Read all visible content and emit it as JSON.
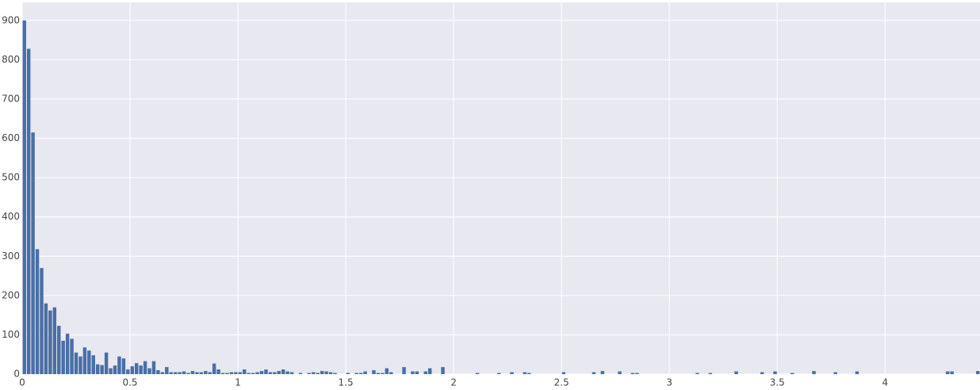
{
  "chart_data": {
    "type": "histogram",
    "color": "#4a6fa5",
    "grid": true,
    "bins": [
      0,
      0.02,
      0.04,
      0.06,
      0.08,
      0.1,
      0.12,
      0.14,
      0.16,
      0.18,
      0.2,
      0.22,
      0.24,
      0.26,
      0.28,
      0.3,
      0.32,
      0.34,
      0.36,
      0.38,
      0.4,
      0.42,
      0.44,
      0.46,
      0.48,
      0.5,
      0.52,
      0.54,
      0.56,
      0.58,
      0.6,
      0.62,
      0.64,
      0.66,
      0.68,
      0.7,
      0.72,
      0.74,
      0.76,
      0.78,
      0.8,
      0.82,
      0.84,
      0.86,
      0.88,
      0.9,
      0.92,
      0.94,
      0.96,
      0.98,
      1,
      1.02,
      1.04,
      1.06,
      1.08,
      1.1,
      1.12,
      1.14,
      1.16,
      1.18,
      1.2,
      1.22,
      1.24,
      1.26,
      1.28,
      1.3,
      1.32,
      1.34,
      1.36,
      1.38,
      1.4,
      1.42,
      1.44,
      1.46,
      1.48,
      1.5,
      1.52,
      1.54,
      1.56,
      1.58,
      1.6,
      1.62,
      1.64,
      1.66,
      1.68,
      1.7,
      1.72,
      1.74,
      1.76,
      1.78,
      1.8,
      1.82,
      1.84,
      1.86,
      1.88,
      1.9,
      1.92,
      1.94,
      1.96,
      1.98,
      2,
      2.02,
      2.04,
      2.06,
      2.08,
      2.1,
      2.12,
      2.14,
      2.16,
      2.18,
      2.2,
      2.22,
      2.24,
      2.26,
      2.28,
      2.3,
      2.32,
      2.34,
      2.36,
      2.38,
      2.4,
      2.42,
      2.44,
      2.46,
      2.48,
      2.5,
      2.52,
      2.54,
      2.56,
      2.58,
      2.6,
      2.62,
      2.64,
      2.66,
      2.68,
      2.7,
      2.72,
      2.74,
      2.76,
      2.78,
      2.8,
      2.82,
      2.84,
      2.86,
      2.88,
      2.9,
      2.92,
      2.94,
      2.96,
      2.98,
      3,
      3.02,
      3.04,
      3.06,
      3.08,
      3.1,
      3.12,
      3.14,
      3.16,
      3.18,
      3.2,
      3.22,
      3.24,
      3.26,
      3.28,
      3.3,
      3.32,
      3.34,
      3.36,
      3.38,
      3.4,
      3.42,
      3.44,
      3.46,
      3.48,
      3.5,
      3.52,
      3.54,
      3.56,
      3.58,
      3.6,
      3.62,
      3.64,
      3.66,
      3.68,
      3.7,
      3.72,
      3.74,
      3.76,
      3.78,
      3.8,
      3.82,
      3.84,
      3.86,
      3.88,
      3.9,
      3.92,
      3.94,
      3.96,
      3.98,
      4,
      4.02,
      4.04,
      4.06,
      4.08,
      4.1,
      4.12,
      4.14,
      4.16,
      4.18,
      4.2,
      4.22,
      4.24,
      4.26,
      4.28,
      4.3,
      4.32,
      4.34,
      4.36,
      4.38,
      4.4,
      4.42,
      4.44
    ],
    "values": [
      900,
      828,
      615,
      318,
      270,
      180,
      162,
      170,
      123,
      85,
      103,
      90,
      55,
      45,
      68,
      60,
      48,
      25,
      23,
      55,
      15,
      22,
      45,
      40,
      12,
      20,
      28,
      22,
      33,
      15,
      33,
      10,
      5,
      18,
      5,
      5,
      5,
      7,
      3,
      8,
      5,
      5,
      8,
      5,
      27,
      12,
      3,
      3,
      5,
      5,
      5,
      12,
      3,
      3,
      5,
      8,
      12,
      5,
      5,
      8,
      12,
      7,
      5,
      0,
      3,
      0,
      3,
      5,
      3,
      8,
      7,
      5,
      3,
      0,
      0,
      3,
      0,
      3,
      3,
      7,
      0,
      10,
      3,
      3,
      15,
      5,
      0,
      0,
      18,
      0,
      7,
      7,
      0,
      7,
      15,
      0,
      0,
      18,
      0,
      0,
      0,
      0,
      0,
      0,
      0,
      3,
      0,
      0,
      0,
      0,
      3,
      0,
      0,
      5,
      0,
      0,
      5,
      3,
      0,
      0,
      0,
      0,
      0,
      0,
      0,
      5,
      0,
      0,
      0,
      0,
      0,
      0,
      5,
      0,
      8,
      0,
      0,
      0,
      7,
      0,
      0,
      3,
      3,
      0,
      0,
      0,
      0,
      0,
      0,
      0,
      0,
      0,
      0,
      0,
      0,
      0,
      3,
      0,
      0,
      3,
      0,
      0,
      0,
      0,
      0,
      7,
      0,
      0,
      0,
      0,
      0,
      5,
      0,
      0,
      7,
      0,
      0,
      0,
      3,
      0,
      0,
      0,
      0,
      8,
      0,
      0,
      0,
      0,
      5,
      0,
      0,
      0,
      0,
      7,
      0,
      0,
      0,
      0,
      0,
      0,
      0,
      0,
      0,
      0,
      0,
      0,
      0,
      0,
      0,
      0,
      0,
      0,
      0,
      0,
      7,
      7,
      0,
      0,
      0,
      0,
      0,
      8
    ],
    "xlim": [
      0,
      4.44
    ],
    "xticks": [
      0,
      0.5,
      1,
      1.5,
      2,
      2.5,
      3,
      3.5,
      4
    ],
    "ylim": [
      0,
      946
    ],
    "yticks": [
      0,
      100,
      200,
      300,
      400,
      500,
      600,
      700,
      800,
      900
    ]
  }
}
